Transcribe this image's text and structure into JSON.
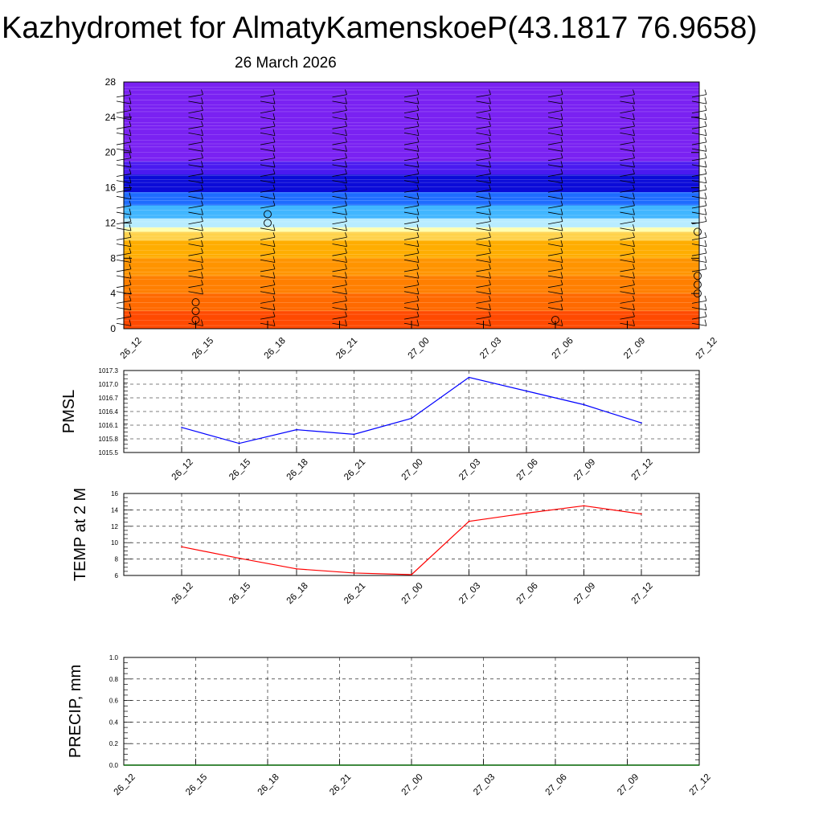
{
  "title": "Kazhydromet for AlmatyKamenskoeP(43.1817 76.9658)",
  "subtitle": "26 March 2026",
  "colors": {
    "pmsl_line": "#0000ff",
    "temp_line": "#ff0000",
    "precip_line": "#006400",
    "grid": "#000000"
  },
  "chart_data": [
    {
      "type": "heatmap",
      "name": "vertical-cross-section",
      "x_tick_labels": [
        "26_12",
        "26_15",
        "26_18",
        "26_21",
        "27_00",
        "27_03",
        "27_06",
        "27_09",
        "27_12"
      ],
      "y_ticks": [
        0,
        4,
        8,
        12,
        16,
        20,
        24,
        28
      ],
      "ylim": [
        0,
        28
      ],
      "color_bands": [
        {
          "from": 0,
          "to": 2,
          "color": "#ff4a00"
        },
        {
          "from": 2,
          "to": 4,
          "color": "#ff6a00"
        },
        {
          "from": 4,
          "to": 6,
          "color": "#ff7f00"
        },
        {
          "from": 6,
          "to": 8,
          "color": "#ff9400"
        },
        {
          "from": 8,
          "to": 10,
          "color": "#ffad00"
        },
        {
          "from": 10,
          "to": 11,
          "color": "#ffd24a"
        },
        {
          "from": 11,
          "to": 11.5,
          "color": "#ffffb0"
        },
        {
          "from": 11.5,
          "to": 12.5,
          "color": "#b8ecff"
        },
        {
          "from": 12.5,
          "to": 14,
          "color": "#41b6ff"
        },
        {
          "from": 14,
          "to": 15.5,
          "color": "#1e6cff"
        },
        {
          "from": 15.5,
          "to": 17.5,
          "color": "#0b0bd8"
        },
        {
          "from": 17.5,
          "to": 19,
          "color": "#4a1af0"
        },
        {
          "from": 19,
          "to": 28,
          "color": "#7a22f2"
        }
      ],
      "wind_columns": [
        "26_12",
        "26_15",
        "26_18",
        "26_21",
        "27_00",
        "27_03",
        "27_06",
        "27_09",
        "27_12"
      ],
      "calm_markers": [
        {
          "x": "26_15",
          "y": [
            1,
            2,
            3
          ]
        },
        {
          "x": "26_18",
          "y": [
            12,
            13
          ]
        },
        {
          "x": "27_06",
          "y": [
            1
          ]
        },
        {
          "x": "27_12",
          "y": [
            4,
            5,
            6,
            11
          ]
        }
      ]
    },
    {
      "type": "line",
      "name": "pmsl",
      "ylabel": "PMSL",
      "categories": [
        "26_12",
        "26_15",
        "26_18",
        "26_21",
        "27_00",
        "27_03",
        "27_06",
        "27_09",
        "27_12"
      ],
      "values": [
        1016.05,
        1015.7,
        1016.0,
        1015.9,
        1016.25,
        1017.15,
        1016.85,
        1016.55,
        1016.15
      ],
      "ylim": [
        1015.5,
        1017.3
      ],
      "y_ticks": [
        "1015.5",
        "1015.8",
        "1016.1",
        "1016.4",
        "1016.7",
        "1017.0",
        "1017.3"
      ],
      "grid": true
    },
    {
      "type": "line",
      "name": "temp-2m",
      "ylabel": "TEMP at 2 M",
      "categories": [
        "26_12",
        "26_15",
        "26_18",
        "26_21",
        "27_00",
        "27_03",
        "27_06",
        "27_09",
        "27_12"
      ],
      "values": [
        9.5,
        8.1,
        6.8,
        6.3,
        6.1,
        12.6,
        13.6,
        14.5,
        13.5
      ],
      "ylim": [
        6,
        16
      ],
      "y_ticks": [
        "6",
        "8",
        "10",
        "12",
        "14",
        "16"
      ],
      "grid": true
    },
    {
      "type": "line",
      "name": "precip",
      "ylabel": "PRECIP, mm",
      "categories": [
        "26_12",
        "26_15",
        "26_18",
        "26_21",
        "27_00",
        "27_03",
        "27_06",
        "27_09",
        "27_12"
      ],
      "values": [
        0,
        0,
        0,
        0,
        0,
        0,
        0,
        0,
        0
      ],
      "ylim": [
        0,
        1
      ],
      "y_ticks": [
        "0.0",
        "0.2",
        "0.4",
        "0.6",
        "0.8",
        "1.0"
      ],
      "grid": true
    }
  ]
}
